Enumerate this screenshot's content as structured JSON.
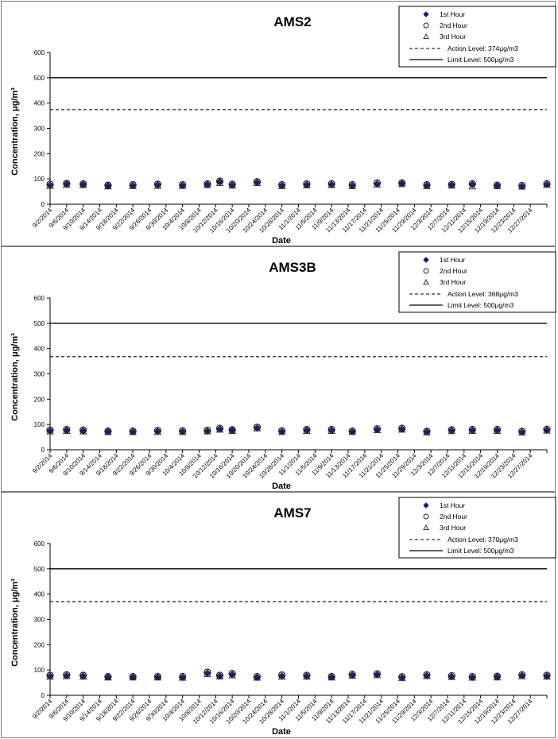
{
  "chart_data": [
    {
      "type": "scatter",
      "title": "AMS2",
      "xlabel": "Date",
      "ylabel": "Concentration,  μg/m³",
      "ylim": [
        0,
        600
      ],
      "yticks": [
        0,
        100,
        200,
        300,
        400,
        500,
        600
      ],
      "xticks": [
        "9/2/2014",
        "9/6/2014",
        "9/10/2014",
        "9/14/2014",
        "9/18/2014",
        "9/22/2014",
        "9/26/2014",
        "9/30/2014",
        "10/4/2014",
        "10/8/2014",
        "10/12/2014",
        "10/16/2014",
        "10/20/2014",
        "10/24/2014",
        "10/28/2014",
        "11/1/2014",
        "11/5/2014",
        "11/9/2014",
        "11/13/2014",
        "11/17/2014",
        "11/21/2014",
        "11/25/2014",
        "11/29/2014",
        "12/3/2014",
        "12/7/2014",
        "12/11/2014",
        "12/15/2014",
        "12/19/2014",
        "12/23/2014",
        "12/27/2014"
      ],
      "dates": [
        "9/2/2014",
        "9/6/2014",
        "9/10/2014",
        "9/16/2014",
        "9/22/2014",
        "9/28/2014",
        "10/4/2014",
        "10/10/2014",
        "10/13/2014",
        "10/16/2014",
        "10/22/2014",
        "10/28/2014",
        "11/3/2014",
        "11/9/2014",
        "11/14/2014",
        "11/20/2014",
        "11/26/2014",
        "12/2/2014",
        "12/8/2014",
        "12/13/2014",
        "12/19/2014",
        "12/25/2014",
        "12/31/2014"
      ],
      "series": [
        {
          "name": "1st Hour",
          "values": [
            75,
            80,
            78,
            73,
            74,
            76,
            74,
            78,
            88,
            76,
            86,
            74,
            77,
            78,
            74,
            80,
            82,
            74,
            76,
            78,
            73,
            71,
            78
          ]
        },
        {
          "name": "2nd Hour",
          "values": [
            79,
            82,
            80,
            75,
            77,
            79,
            77,
            80,
            91,
            79,
            89,
            77,
            80,
            81,
            77,
            84,
            84,
            77,
            78,
            81,
            75,
            74,
            81
          ]
        },
        {
          "name": "3rd Hour",
          "values": [
            72,
            76,
            75,
            70,
            71,
            72,
            72,
            75,
            83,
            73,
            83,
            71,
            74,
            75,
            71,
            77,
            79,
            71,
            73,
            70,
            71,
            69,
            76
          ]
        }
      ],
      "reference_lines": [
        {
          "label": "Action Level: 374μg/m3",
          "value": 374,
          "style": "dashed"
        },
        {
          "label": "Limit Level: 500μg/m3",
          "value": 500,
          "style": "solid"
        }
      ],
      "grid": false,
      "legend_position": "top-right"
    },
    {
      "type": "scatter",
      "title": "AMS3B",
      "xlabel": "Date",
      "ylabel": "Concentration,  μg/m³",
      "ylim": [
        0,
        600
      ],
      "yticks": [
        0,
        100,
        200,
        300,
        400,
        500,
        600
      ],
      "xticks": [
        "9/2/2014",
        "9/6/2014",
        "9/10/2014",
        "9/14/2014",
        "9/18/2014",
        "9/22/2014",
        "9/26/2014",
        "9/30/2014",
        "10/4/2014",
        "10/8/2014",
        "10/12/2014",
        "10/16/2014",
        "10/20/2014",
        "10/24/2014",
        "10/28/2014",
        "11/1/2014",
        "11/5/2014",
        "11/9/2014",
        "11/13/2014",
        "11/17/2014",
        "11/21/2014",
        "11/25/2014",
        "11/29/2014",
        "12/3/2014",
        "12/7/2014",
        "12/11/2014",
        "12/15/2014",
        "12/19/2014",
        "12/23/2014",
        "12/27/2014"
      ],
      "dates": [
        "9/2/2014",
        "9/6/2014",
        "9/10/2014",
        "9/16/2014",
        "9/22/2014",
        "9/28/2014",
        "10/4/2014",
        "10/10/2014",
        "10/13/2014",
        "10/16/2014",
        "10/22/2014",
        "10/28/2014",
        "11/3/2014",
        "11/9/2014",
        "11/14/2014",
        "11/20/2014",
        "11/26/2014",
        "12/2/2014",
        "12/8/2014",
        "12/13/2014",
        "12/19/2014",
        "12/25/2014",
        "12/31/2014"
      ],
      "series": [
        {
          "name": "1st Hour",
          "values": [
            75,
            77,
            75,
            72,
            72,
            73,
            72,
            74,
            82,
            77,
            86,
            72,
            77,
            77,
            72,
            80,
            82,
            71,
            76,
            77,
            77,
            70,
            78
          ]
        },
        {
          "name": "2nd Hour",
          "values": [
            78,
            80,
            78,
            74,
            74,
            76,
            75,
            77,
            85,
            79,
            89,
            75,
            80,
            80,
            74,
            83,
            85,
            73,
            79,
            80,
            80,
            73,
            81
          ]
        },
        {
          "name": "3rd Hour",
          "values": [
            72,
            74,
            72,
            69,
            69,
            70,
            70,
            72,
            79,
            74,
            84,
            70,
            74,
            74,
            70,
            77,
            79,
            68,
            73,
            74,
            74,
            68,
            75
          ]
        }
      ],
      "reference_lines": [
        {
          "label": "Action Level: 368μg/m3",
          "value": 368,
          "style": "dashed"
        },
        {
          "label": "Limit Level: 500μg/m3",
          "value": 500,
          "style": "solid"
        }
      ],
      "grid": false,
      "legend_position": "top-right"
    },
    {
      "type": "scatter",
      "title": "AMS7",
      "xlabel": "Date",
      "ylabel": "Concentration,  μg/m³",
      "ylim": [
        0,
        600
      ],
      "yticks": [
        0,
        100,
        200,
        300,
        400,
        500,
        600
      ],
      "xticks": [
        "9/2/2014",
        "9/6/2014",
        "9/10/2014",
        "9/14/2014",
        "9/18/2014",
        "9/22/2014",
        "9/26/2014",
        "9/30/2014",
        "10/4/2014",
        "10/8/2014",
        "10/12/2014",
        "10/16/2014",
        "10/20/2014",
        "10/24/2014",
        "10/28/2014",
        "11/1/2014",
        "11/5/2014",
        "11/9/2014",
        "11/13/2014",
        "11/17/2014",
        "11/21/2014",
        "11/25/2014",
        "11/29/2014",
        "12/3/2014",
        "12/7/2014",
        "12/11/2014",
        "12/15/2014",
        "12/19/2014",
        "12/23/2014",
        "12/27/2014"
      ],
      "dates": [
        "9/2/2014",
        "9/6/2014",
        "9/10/2014",
        "9/16/2014",
        "9/22/2014",
        "9/28/2014",
        "10/4/2014",
        "10/10/2014",
        "10/13/2014",
        "10/16/2014",
        "10/22/2014",
        "10/28/2014",
        "11/3/2014",
        "11/9/2014",
        "11/14/2014",
        "11/20/2014",
        "11/26/2014",
        "12/2/2014",
        "12/8/2014",
        "12/13/2014",
        "12/19/2014",
        "12/25/2014",
        "12/31/2014"
      ],
      "series": [
        {
          "name": "1st Hour",
          "values": [
            76,
            78,
            76,
            72,
            72,
            72,
            71,
            87,
            76,
            82,
            71,
            76,
            76,
            72,
            80,
            82,
            70,
            78,
            74,
            71,
            73,
            78,
            76
          ]
        },
        {
          "name": "2nd Hour",
          "values": [
            79,
            81,
            79,
            74,
            74,
            74,
            74,
            91,
            79,
            86,
            74,
            80,
            79,
            74,
            83,
            85,
            73,
            81,
            77,
            74,
            75,
            81,
            79
          ]
        },
        {
          "name": "3rd Hour",
          "values": [
            73,
            75,
            73,
            70,
            70,
            70,
            69,
            83,
            74,
            78,
            69,
            73,
            73,
            70,
            77,
            79,
            68,
            75,
            72,
            69,
            70,
            75,
            73
          ]
        }
      ],
      "reference_lines": [
        {
          "label": "Action Level: 370μg/m3",
          "value": 370,
          "style": "dashed"
        },
        {
          "label": "Limit Level: 500μg/m3",
          "value": 500,
          "style": "solid"
        }
      ],
      "grid": false,
      "legend_position": "top-right"
    }
  ],
  "colors": {
    "first_hour_marker": "#0d1a7a",
    "axis": "#000000",
    "reference_line": "#000000"
  }
}
